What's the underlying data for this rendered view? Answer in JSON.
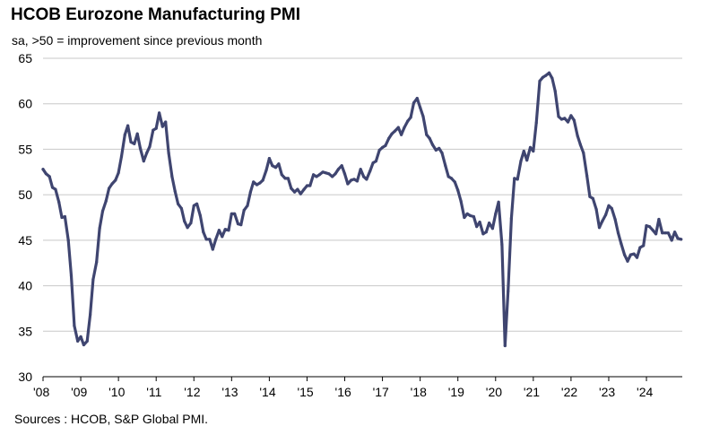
{
  "chart_data": {
    "type": "line",
    "title": "HCOB Eurozone Manufacturing PMI",
    "subtitle": "sa, >50 = improvement  since previous month",
    "source": "Sources : HCOB, S&P Global PMI.",
    "series_color": "#3f4570",
    "grid": true,
    "ylim": [
      30,
      65
    ],
    "yticks": [
      30,
      35,
      40,
      45,
      50,
      55,
      60,
      65
    ],
    "ytick_labels": [
      "30",
      "35",
      "40",
      "45",
      "50",
      "55",
      "60",
      "65"
    ],
    "xlim": [
      2008.0,
      2024.95
    ],
    "xticks": [
      2008,
      2009,
      2010,
      2011,
      2012,
      2013,
      2014,
      2015,
      2016,
      2017,
      2018,
      2019,
      2020,
      2021,
      2022,
      2023,
      2024
    ],
    "xtick_labels": [
      "'08",
      "'09",
      "'10",
      "'11",
      "'12",
      "'13",
      "'14",
      "'15",
      "'16",
      "'17",
      "'18",
      "'19",
      "'20",
      "'21",
      "'22",
      "'23",
      "'24"
    ],
    "series": [
      {
        "name": "HCOB Eurozone Manufacturing PMI",
        "x": [
          2008.0,
          2008.08,
          2008.17,
          2008.25,
          2008.33,
          2008.42,
          2008.5,
          2008.58,
          2008.67,
          2008.75,
          2008.83,
          2008.92,
          2009.0,
          2009.08,
          2009.17,
          2009.25,
          2009.33,
          2009.42,
          2009.5,
          2009.58,
          2009.67,
          2009.75,
          2009.83,
          2009.92,
          2010.0,
          2010.08,
          2010.17,
          2010.25,
          2010.33,
          2010.42,
          2010.5,
          2010.58,
          2010.67,
          2010.75,
          2010.83,
          2010.92,
          2011.0,
          2011.08,
          2011.17,
          2011.25,
          2011.33,
          2011.42,
          2011.5,
          2011.58,
          2011.67,
          2011.75,
          2011.83,
          2011.92,
          2012.0,
          2012.08,
          2012.17,
          2012.25,
          2012.33,
          2012.42,
          2012.5,
          2012.58,
          2012.67,
          2012.75,
          2012.83,
          2012.92,
          2013.0,
          2013.08,
          2013.17,
          2013.25,
          2013.33,
          2013.42,
          2013.5,
          2013.58,
          2013.67,
          2013.75,
          2013.83,
          2013.92,
          2014.0,
          2014.08,
          2014.17,
          2014.25,
          2014.33,
          2014.42,
          2014.5,
          2014.58,
          2014.67,
          2014.75,
          2014.83,
          2014.92,
          2015.0,
          2015.08,
          2015.17,
          2015.25,
          2015.33,
          2015.42,
          2015.5,
          2015.58,
          2015.67,
          2015.75,
          2015.83,
          2015.92,
          2016.0,
          2016.08,
          2016.17,
          2016.25,
          2016.33,
          2016.42,
          2016.5,
          2016.58,
          2016.67,
          2016.75,
          2016.83,
          2016.92,
          2017.0,
          2017.08,
          2017.17,
          2017.25,
          2017.33,
          2017.42,
          2017.5,
          2017.58,
          2017.67,
          2017.75,
          2017.83,
          2017.92,
          2018.0,
          2018.08,
          2018.17,
          2018.25,
          2018.33,
          2018.42,
          2018.5,
          2018.58,
          2018.67,
          2018.75,
          2018.83,
          2018.92,
          2019.0,
          2019.08,
          2019.17,
          2019.25,
          2019.33,
          2019.42,
          2019.5,
          2019.58,
          2019.67,
          2019.75,
          2019.83,
          2019.92,
          2020.0,
          2020.08,
          2020.17,
          2020.25,
          2020.33,
          2020.42,
          2020.5,
          2020.58,
          2020.67,
          2020.75,
          2020.83,
          2020.92,
          2021.0,
          2021.08,
          2021.17,
          2021.25,
          2021.33,
          2021.42,
          2021.5,
          2021.58,
          2021.67,
          2021.75,
          2021.83,
          2021.92,
          2022.0,
          2022.08,
          2022.17,
          2022.25,
          2022.33,
          2022.42,
          2022.5,
          2022.58,
          2022.67,
          2022.75,
          2022.83,
          2022.92,
          2023.0,
          2023.08,
          2023.17,
          2023.25,
          2023.33,
          2023.42,
          2023.5,
          2023.58,
          2023.67,
          2023.75,
          2023.83,
          2023.92,
          2024.0,
          2024.08,
          2024.17,
          2024.25,
          2024.33,
          2024.42,
          2024.5,
          2024.58,
          2024.67,
          2024.75,
          2024.83,
          2024.92
        ],
        "values": [
          52.8,
          52.3,
          52.0,
          50.8,
          50.6,
          49.2,
          47.5,
          47.6,
          45.0,
          41.1,
          35.6,
          33.9,
          34.4,
          33.5,
          33.9,
          36.8,
          40.7,
          42.6,
          46.3,
          48.2,
          49.3,
          50.7,
          51.2,
          51.6,
          52.4,
          54.2,
          56.6,
          57.6,
          55.8,
          55.6,
          56.7,
          55.1,
          53.7,
          54.6,
          55.3,
          57.1,
          57.3,
          59.0,
          57.5,
          58.0,
          54.6,
          52.0,
          50.4,
          49.0,
          48.5,
          47.1,
          46.4,
          46.9,
          48.8,
          49.0,
          47.7,
          45.9,
          45.1,
          45.1,
          44.0,
          45.1,
          46.1,
          45.4,
          46.2,
          46.1,
          47.9,
          47.9,
          46.8,
          46.7,
          48.3,
          48.8,
          50.3,
          51.4,
          51.1,
          51.3,
          51.6,
          52.7,
          54.0,
          53.2,
          53.0,
          53.4,
          52.2,
          51.8,
          51.8,
          50.7,
          50.3,
          50.6,
          50.1,
          50.6,
          51.0,
          51.0,
          52.2,
          52.0,
          52.2,
          52.5,
          52.4,
          52.3,
          52.0,
          52.3,
          52.8,
          53.2,
          52.3,
          51.2,
          51.6,
          51.7,
          51.5,
          52.8,
          52.0,
          51.7,
          52.6,
          53.5,
          53.7,
          54.9,
          55.2,
          55.4,
          56.2,
          56.7,
          57.0,
          57.4,
          56.6,
          57.4,
          58.1,
          58.5,
          60.1,
          60.6,
          59.6,
          58.6,
          56.6,
          56.2,
          55.5,
          54.9,
          55.1,
          54.6,
          53.2,
          52.0,
          51.8,
          51.4,
          50.5,
          49.3,
          47.5,
          47.9,
          47.7,
          47.6,
          46.5,
          47.0,
          45.7,
          45.9,
          46.9,
          46.3,
          47.9,
          49.2,
          44.5,
          33.4,
          39.4,
          47.4,
          51.8,
          51.7,
          53.7,
          54.8,
          53.8,
          55.2,
          54.8,
          57.9,
          62.5,
          62.9,
          63.1,
          63.4,
          62.8,
          61.4,
          58.6,
          58.3,
          58.4,
          58.0,
          58.7,
          58.2,
          56.5,
          55.5,
          54.6,
          52.1,
          49.8,
          49.6,
          48.4,
          46.4,
          47.1,
          47.8,
          48.8,
          48.5,
          47.3,
          45.8,
          44.6,
          43.4,
          42.7,
          43.4,
          43.5,
          43.1,
          44.2,
          44.4,
          46.6,
          46.5,
          46.1,
          45.7,
          47.3,
          45.8,
          45.8,
          45.8,
          45.0,
          45.9,
          45.2,
          45.1
        ]
      }
    ]
  }
}
